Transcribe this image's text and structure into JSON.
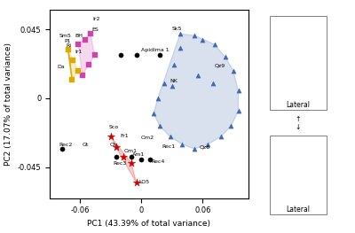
{
  "chart_data": {
    "type": "scatter",
    "title": "",
    "x_label": "PC1 (43.39% of total variance)",
    "y_label": "PC2 (17.07% of total variance)",
    "xlim": [
      -0.09,
      0.105
    ],
    "ylim": [
      -0.065,
      0.058
    ],
    "xticks": [
      -0.06,
      0,
      0.06
    ],
    "yticks": [
      -0.045,
      0,
      0.045
    ],
    "grid": false,
    "series": [
      {
        "type": "hull",
        "color": "#4169b0",
        "marker": "triangle",
        "x": [
          0.038,
          0.052,
          0.06,
          0.072,
          0.082,
          0.09,
          0.095,
          0.095,
          0.088,
          0.078,
          0.065,
          0.052,
          0.04,
          0.028,
          0.018,
          0.012,
          0.016,
          0.022,
          0.032,
          0.038,
          0.03,
          0.055,
          0.07
        ],
        "y": [
          0.042,
          0.041,
          0.038,
          0.035,
          0.027,
          0.018,
          0.005,
          -0.008,
          -0.018,
          -0.025,
          -0.03,
          -0.033,
          -0.03,
          -0.025,
          -0.018,
          -0.01,
          0.0,
          0.01,
          0.022,
          0.033,
          0.008,
          0.015,
          0.01
        ]
      },
      {
        "type": "hull",
        "color": "#cc44aa",
        "marker": "square",
        "x": [
          -0.062,
          -0.055,
          -0.05,
          -0.046,
          -0.052,
          -0.058
        ],
        "y": [
          0.035,
          0.038,
          0.042,
          0.028,
          0.022,
          0.015
        ]
      },
      {
        "type": "hull",
        "color": "#ddaa00",
        "marker": "square",
        "x": [
          -0.072,
          -0.067,
          -0.062,
          -0.068
        ],
        "y": [
          0.032,
          0.025,
          0.018,
          0.012
        ]
      },
      {
        "type": "line",
        "color": "#ddaa00",
        "x": [
          -0.072,
          -0.068
        ],
        "y": [
          0.032,
          0.012
        ]
      },
      {
        "type": "hull",
        "color": "#cc0000",
        "marker": "star",
        "x": [
          -0.03,
          -0.025,
          -0.018,
          -0.01,
          -0.005
        ],
        "y": [
          -0.025,
          -0.032,
          -0.038,
          -0.042,
          -0.055
        ]
      },
      {
        "type": "scatter",
        "color": "#000000",
        "marker": "circle",
        "x": [
          -0.078,
          -0.02,
          0.018,
          -0.025,
          -0.01,
          0.0,
          0.008
        ],
        "y": [
          -0.033,
          0.028,
          0.028,
          -0.038,
          -0.038,
          -0.04,
          -0.04
        ]
      },
      {
        "type": "scatter",
        "color": "#000000",
        "marker": "circle",
        "x": [
          -0.005
        ],
        "y": [
          0.028
        ]
      }
    ],
    "annotations": [
      {
        "text": "Apidima 1",
        "x": 0.0,
        "y": 0.03
      },
      {
        "text": "Sk5",
        "x": 0.03,
        "y": 0.044
      },
      {
        "text": "NK",
        "x": 0.028,
        "y": 0.01
      },
      {
        "text": "Qz9",
        "x": 0.072,
        "y": 0.02
      },
      {
        "text": "Qz6",
        "x": 0.057,
        "y": -0.033
      },
      {
        "text": "Ir2",
        "x": -0.048,
        "y": 0.05
      },
      {
        "text": "BH",
        "x": -0.065,
        "y": 0.039
      },
      {
        "text": "ES",
        "x": -0.049,
        "y": 0.043
      },
      {
        "text": "Ir1",
        "x": -0.065,
        "y": 0.029
      },
      {
        "text": "Sm5",
        "x": -0.081,
        "y": 0.039
      },
      {
        "text": "P1",
        "x": -0.076,
        "y": 0.036
      },
      {
        "text": "Ri",
        "x": -0.074,
        "y": 0.033
      },
      {
        "text": "Da",
        "x": -0.083,
        "y": 0.019
      },
      {
        "text": "Sco",
        "x": -0.032,
        "y": -0.02
      },
      {
        "text": "Fr1",
        "x": -0.021,
        "y": -0.026
      },
      {
        "text": "Ch",
        "x": -0.031,
        "y": -0.032
      },
      {
        "text": "Om1",
        "x": -0.017,
        "y": -0.036
      },
      {
        "text": "LO5",
        "x": -0.003,
        "y": -0.056
      },
      {
        "text": "Rec2",
        "x": -0.081,
        "y": -0.032
      },
      {
        "text": "Gt",
        "x": -0.058,
        "y": -0.032
      },
      {
        "text": "Rec1",
        "x": 0.02,
        "y": -0.033
      },
      {
        "text": "Am1",
        "x": -0.009,
        "y": -0.038
      },
      {
        "text": "Rec3",
        "x": -0.028,
        "y": -0.044
      },
      {
        "text": "Rec4",
        "x": 0.01,
        "y": -0.043
      },
      {
        "text": "Om2",
        "x": -0.001,
        "y": -0.027
      }
    ],
    "side_texts": [
      "Lateral",
      "↑",
      "↓",
      "Lateral"
    ]
  }
}
